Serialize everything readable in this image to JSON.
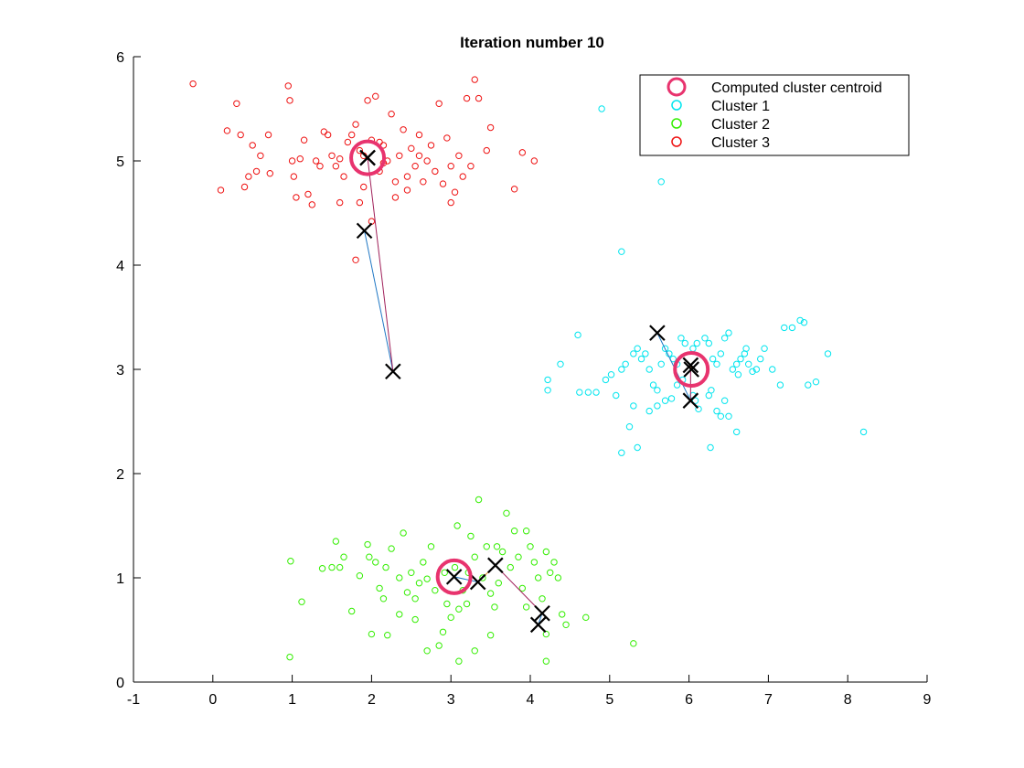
{
  "chart_data": {
    "type": "scatter",
    "title": "Iteration number 10",
    "xlabel": "",
    "ylabel": "",
    "xlim": [
      -1,
      9
    ],
    "ylim": [
      0,
      6
    ],
    "xticks": [
      -1,
      0,
      1,
      2,
      3,
      4,
      5,
      6,
      7,
      8,
      9
    ],
    "yticks": [
      0,
      1,
      2,
      3,
      4,
      5,
      6
    ],
    "grid": false,
    "legend": {
      "placement": "top-right",
      "entries": [
        {
          "label": "Computed cluster centroid",
          "color": "#e8336e",
          "marker": "large-circle"
        },
        {
          "label": "Cluster 1",
          "color": "#00e5ee",
          "marker": "circle"
        },
        {
          "label": "Cluster 2",
          "color": "#33ee00",
          "marker": "circle"
        },
        {
          "label": "Cluster 3",
          "color": "#ee1111",
          "marker": "circle"
        }
      ]
    },
    "colors": {
      "centroid": "#e8336e",
      "history_marker": "#000000",
      "path_segment_1": "#1f77c4",
      "path_segment_2": "#a0205a",
      "path_segment_3": "#e08a20"
    },
    "centroids": [
      [
        6.03,
        3.0
      ],
      [
        3.04,
        1.01
      ],
      [
        1.95,
        5.03
      ]
    ],
    "centroid_history": [
      [
        [
          5.6,
          3.35
        ],
        [
          6.02,
          2.7
        ],
        [
          6.02,
          3.04
        ],
        [
          6.03,
          3.0
        ]
      ],
      [
        [
          4.1,
          0.55
        ],
        [
          4.15,
          0.66
        ],
        [
          3.56,
          1.12
        ],
        [
          3.34,
          0.96
        ],
        [
          3.04,
          1.01
        ]
      ],
      [
        [
          1.91,
          4.33
        ],
        [
          2.27,
          2.98
        ],
        [
          1.95,
          5.03
        ],
        [
          1.95,
          5.03
        ]
      ]
    ],
    "series": [
      {
        "name": "Cluster 1",
        "color": "#00e5ee",
        "points": [
          [
            4.9,
            5.5
          ],
          [
            5.65,
            4.8
          ],
          [
            5.15,
            4.13
          ],
          [
            4.6,
            3.33
          ],
          [
            4.38,
            3.05
          ],
          [
            4.22,
            2.9
          ],
          [
            4.22,
            2.8
          ],
          [
            4.62,
            2.78
          ],
          [
            4.73,
            2.78
          ],
          [
            4.83,
            2.78
          ],
          [
            4.95,
            2.9
          ],
          [
            5.02,
            2.95
          ],
          [
            5.08,
            2.75
          ],
          [
            5.15,
            3.0
          ],
          [
            5.2,
            3.05
          ],
          [
            5.3,
            3.15
          ],
          [
            5.35,
            3.2
          ],
          [
            5.4,
            3.1
          ],
          [
            5.45,
            3.15
          ],
          [
            5.5,
            3.0
          ],
          [
            5.55,
            2.85
          ],
          [
            5.6,
            2.8
          ],
          [
            5.65,
            3.05
          ],
          [
            5.7,
            3.2
          ],
          [
            5.75,
            3.15
          ],
          [
            5.8,
            3.1
          ],
          [
            5.85,
            3.05
          ],
          [
            5.9,
            3.3
          ],
          [
            5.95,
            3.25
          ],
          [
            6.05,
            3.2
          ],
          [
            6.1,
            3.25
          ],
          [
            6.2,
            3.3
          ],
          [
            6.25,
            3.25
          ],
          [
            6.3,
            3.1
          ],
          [
            6.35,
            3.05
          ],
          [
            6.4,
            3.15
          ],
          [
            6.45,
            3.3
          ],
          [
            6.5,
            3.35
          ],
          [
            6.55,
            3.0
          ],
          [
            6.6,
            3.05
          ],
          [
            6.62,
            2.95
          ],
          [
            6.65,
            3.1
          ],
          [
            6.7,
            3.15
          ],
          [
            6.72,
            3.2
          ],
          [
            6.75,
            3.05
          ],
          [
            6.8,
            2.98
          ],
          [
            6.85,
            3.0
          ],
          [
            6.9,
            3.1
          ],
          [
            6.95,
            3.2
          ],
          [
            7.05,
            3.0
          ],
          [
            7.15,
            2.85
          ],
          [
            7.2,
            3.4
          ],
          [
            7.3,
            3.4
          ],
          [
            7.4,
            3.47
          ],
          [
            7.45,
            3.45
          ],
          [
            7.5,
            2.85
          ],
          [
            7.6,
            2.88
          ],
          [
            7.75,
            3.15
          ],
          [
            8.2,
            2.4
          ],
          [
            5.3,
            2.65
          ],
          [
            5.25,
            2.45
          ],
          [
            5.15,
            2.2
          ],
          [
            5.35,
            2.25
          ],
          [
            5.85,
            2.85
          ],
          [
            5.92,
            2.9
          ],
          [
            6.05,
            2.75
          ],
          [
            6.08,
            2.7
          ],
          [
            6.12,
            2.62
          ],
          [
            6.25,
            2.75
          ],
          [
            6.28,
            2.8
          ],
          [
            6.35,
            2.6
          ],
          [
            6.4,
            2.55
          ],
          [
            6.5,
            2.55
          ],
          [
            6.45,
            2.7
          ],
          [
            6.6,
            2.4
          ],
          [
            6.27,
            2.25
          ],
          [
            5.5,
            2.6
          ],
          [
            5.6,
            2.65
          ],
          [
            5.7,
            2.7
          ],
          [
            5.78,
            2.72
          ]
        ]
      },
      {
        "name": "Cluster 2",
        "color": "#33ee00",
        "points": [
          [
            0.97,
            0.24
          ],
          [
            0.98,
            1.16
          ],
          [
            1.12,
            0.77
          ],
          [
            1.38,
            1.09
          ],
          [
            1.5,
            1.1
          ],
          [
            1.55,
            1.35
          ],
          [
            1.6,
            1.1
          ],
          [
            1.65,
            1.2
          ],
          [
            1.75,
            0.68
          ],
          [
            1.85,
            1.02
          ],
          [
            1.95,
            1.32
          ],
          [
            1.97,
            1.2
          ],
          [
            2.0,
            0.46
          ],
          [
            2.05,
            1.15
          ],
          [
            2.1,
            0.9
          ],
          [
            2.15,
            0.8
          ],
          [
            2.18,
            1.1
          ],
          [
            2.2,
            0.45
          ],
          [
            2.25,
            1.28
          ],
          [
            2.35,
            0.65
          ],
          [
            2.4,
            1.43
          ],
          [
            2.45,
            0.86
          ],
          [
            2.5,
            1.05
          ],
          [
            2.55,
            0.8
          ],
          [
            2.6,
            0.95
          ],
          [
            2.65,
            1.15
          ],
          [
            2.7,
            0.99
          ],
          [
            2.75,
            1.3
          ],
          [
            2.8,
            0.88
          ],
          [
            2.85,
            0.35
          ],
          [
            2.9,
            0.48
          ],
          [
            2.92,
            1.05
          ],
          [
            2.95,
            0.75
          ],
          [
            3.0,
            0.62
          ],
          [
            3.05,
            1.1
          ],
          [
            3.08,
            1.5
          ],
          [
            3.1,
            0.7
          ],
          [
            3.15,
            0.88
          ],
          [
            3.2,
            0.75
          ],
          [
            3.22,
            1.05
          ],
          [
            3.25,
            1.4
          ],
          [
            3.3,
            1.2
          ],
          [
            3.35,
            1.75
          ],
          [
            3.4,
            1.0
          ],
          [
            3.45,
            1.3
          ],
          [
            3.5,
            0.85
          ],
          [
            3.55,
            0.72
          ],
          [
            3.6,
            0.95
          ],
          [
            3.65,
            1.25
          ],
          [
            3.7,
            1.62
          ],
          [
            3.75,
            1.1
          ],
          [
            3.8,
            1.45
          ],
          [
            3.85,
            1.2
          ],
          [
            3.9,
            0.9
          ],
          [
            3.95,
            1.45
          ],
          [
            4.0,
            1.3
          ],
          [
            4.05,
            1.15
          ],
          [
            4.1,
            1.0
          ],
          [
            4.15,
            0.8
          ],
          [
            4.2,
            1.25
          ],
          [
            4.25,
            1.05
          ],
          [
            4.3,
            1.15
          ],
          [
            4.35,
            1.0
          ],
          [
            4.4,
            0.65
          ],
          [
            4.45,
            0.55
          ],
          [
            4.2,
            0.46
          ],
          [
            3.3,
            0.3
          ],
          [
            3.1,
            0.2
          ],
          [
            3.95,
            0.72
          ],
          [
            3.5,
            0.45
          ],
          [
            2.7,
            0.3
          ],
          [
            4.2,
            0.2
          ],
          [
            4.7,
            0.62
          ],
          [
            5.3,
            0.37
          ],
          [
            2.55,
            0.6
          ],
          [
            2.35,
            1.0
          ],
          [
            3.58,
            1.3
          ]
        ]
      },
      {
        "name": "Cluster 3",
        "color": "#ee1111",
        "points": [
          [
            -0.25,
            5.74
          ],
          [
            0.1,
            4.72
          ],
          [
            0.18,
            5.29
          ],
          [
            0.3,
            5.55
          ],
          [
            0.35,
            5.25
          ],
          [
            0.4,
            4.75
          ],
          [
            0.45,
            4.85
          ],
          [
            0.5,
            5.15
          ],
          [
            0.55,
            4.9
          ],
          [
            0.6,
            5.05
          ],
          [
            0.7,
            5.25
          ],
          [
            0.72,
            4.88
          ],
          [
            0.95,
            5.72
          ],
          [
            0.97,
            5.58
          ],
          [
            1.0,
            5.0
          ],
          [
            1.02,
            4.85
          ],
          [
            1.05,
            4.65
          ],
          [
            1.1,
            5.02
          ],
          [
            1.15,
            5.2
          ],
          [
            1.2,
            4.68
          ],
          [
            1.25,
            4.58
          ],
          [
            1.3,
            5.0
          ],
          [
            1.35,
            4.95
          ],
          [
            1.4,
            5.28
          ],
          [
            1.45,
            5.25
          ],
          [
            1.5,
            5.05
          ],
          [
            1.55,
            4.95
          ],
          [
            1.6,
            4.6
          ],
          [
            1.65,
            4.85
          ],
          [
            1.7,
            5.18
          ],
          [
            1.75,
            5.25
          ],
          [
            1.8,
            5.35
          ],
          [
            1.85,
            4.6
          ],
          [
            1.9,
            5.05
          ],
          [
            1.95,
            5.58
          ],
          [
            2.0,
            5.2
          ],
          [
            2.05,
            5.62
          ],
          [
            2.1,
            4.9
          ],
          [
            2.15,
            5.15
          ],
          [
            2.2,
            5.0
          ],
          [
            2.25,
            5.45
          ],
          [
            2.3,
            4.8
          ],
          [
            2.35,
            5.05
          ],
          [
            2.4,
            5.3
          ],
          [
            2.45,
            4.85
          ],
          [
            2.5,
            5.12
          ],
          [
            2.55,
            4.95
          ],
          [
            2.6,
            5.25
          ],
          [
            2.65,
            4.8
          ],
          [
            2.7,
            5.0
          ],
          [
            2.75,
            5.15
          ],
          [
            2.8,
            4.9
          ],
          [
            2.85,
            5.55
          ],
          [
            2.9,
            4.78
          ],
          [
            2.95,
            5.22
          ],
          [
            3.0,
            4.6
          ],
          [
            3.05,
            4.7
          ],
          [
            3.1,
            5.05
          ],
          [
            3.15,
            4.85
          ],
          [
            3.2,
            5.6
          ],
          [
            3.25,
            4.95
          ],
          [
            3.3,
            5.78
          ],
          [
            3.35,
            5.6
          ],
          [
            3.45,
            5.1
          ],
          [
            3.5,
            5.32
          ],
          [
            3.8,
            4.73
          ],
          [
            3.9,
            5.08
          ],
          [
            4.05,
            5.0
          ],
          [
            1.8,
            4.05
          ],
          [
            2.0,
            4.42
          ],
          [
            1.9,
            4.75
          ],
          [
            2.3,
            4.65
          ],
          [
            2.15,
            4.98
          ],
          [
            1.6,
            5.02
          ],
          [
            2.1,
            5.18
          ],
          [
            1.85,
            5.1
          ],
          [
            2.45,
            4.72
          ],
          [
            2.6,
            5.05
          ],
          [
            3.0,
            4.95
          ]
        ]
      }
    ]
  }
}
